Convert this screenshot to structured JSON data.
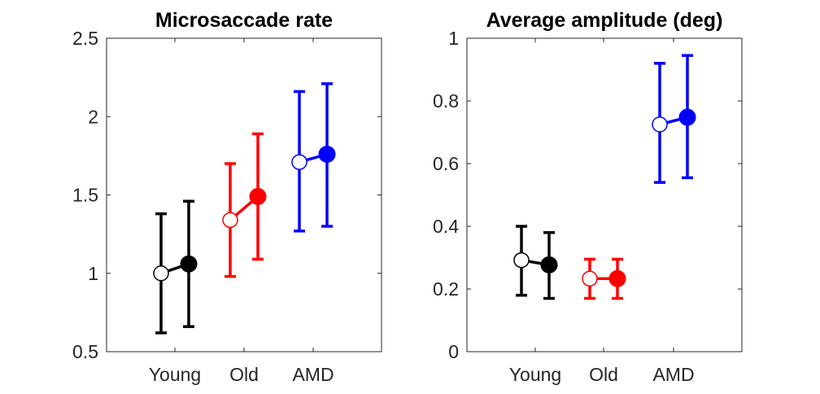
{
  "chart_data": [
    {
      "type": "scatter",
      "title": "Microsaccade rate",
      "categories": [
        "Young",
        "Old",
        "AMD"
      ],
      "ylim": [
        0.5,
        2.5
      ],
      "yticks": [
        "0.5",
        "1",
        "1.5",
        "2",
        "2.5"
      ],
      "grid": false,
      "series": [
        {
          "group": "Young",
          "color": "#000000",
          "open": {
            "mean": 1.0,
            "lower": 0.62,
            "upper": 1.38
          },
          "filled": {
            "mean": 1.06,
            "lower": 0.66,
            "upper": 1.46
          }
        },
        {
          "group": "Old",
          "color": "#ff0000",
          "open": {
            "mean": 1.34,
            "lower": 0.98,
            "upper": 1.7
          },
          "filled": {
            "mean": 1.49,
            "lower": 1.09,
            "upper": 1.89
          }
        },
        {
          "group": "AMD",
          "color": "#0000ff",
          "open": {
            "mean": 1.71,
            "lower": 1.27,
            "upper": 2.16
          },
          "filled": {
            "mean": 1.76,
            "lower": 1.3,
            "upper": 2.21
          }
        }
      ]
    },
    {
      "type": "scatter",
      "title": "Average amplitude (deg)",
      "categories": [
        "Young",
        "Old",
        "AMD"
      ],
      "ylim": [
        0,
        1
      ],
      "yticks": [
        "0",
        "0.2",
        "0.4",
        "0.6",
        "0.8",
        "1"
      ],
      "grid": false,
      "series": [
        {
          "group": "Young",
          "color": "#000000",
          "open": {
            "mean": 0.292,
            "lower": 0.18,
            "upper": 0.4
          },
          "filled": {
            "mean": 0.277,
            "lower": 0.17,
            "upper": 0.38
          }
        },
        {
          "group": "Old",
          "color": "#ff0000",
          "open": {
            "mean": 0.233,
            "lower": 0.17,
            "upper": 0.295
          },
          "filled": {
            "mean": 0.233,
            "lower": 0.17,
            "upper": 0.295
          }
        },
        {
          "group": "AMD",
          "color": "#0000ff",
          "open": {
            "mean": 0.725,
            "lower": 0.54,
            "upper": 0.92
          },
          "filled": {
            "mean": 0.748,
            "lower": 0.555,
            "upper": 0.945
          }
        }
      ]
    }
  ]
}
